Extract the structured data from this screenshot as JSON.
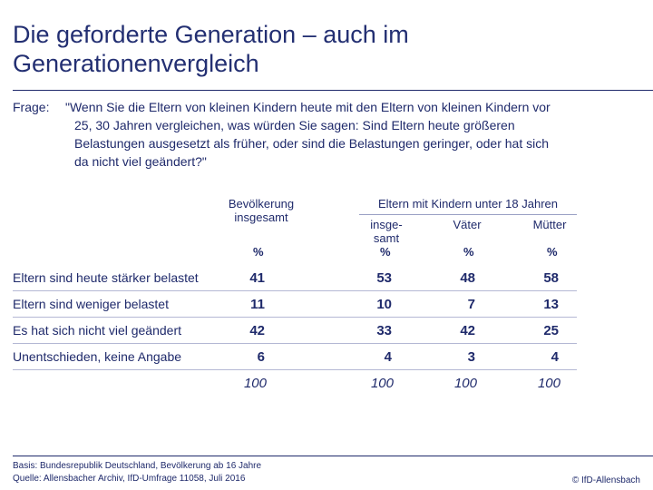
{
  "title": {
    "line1": "Die geforderte Generation – auch im",
    "line2": "Generationenvergleich"
  },
  "question": {
    "label": "Frage:",
    "lines": [
      "\"Wenn Sie die Eltern von kleinen Kindern heute mit den Eltern von kleinen Kindern vor",
      "25, 30 Jahren vergleichen, was würden Sie sagen: Sind Eltern heute größeren",
      "Belastungen ausgesetzt als früher, oder sind die Belastungen geringer, oder hat sich",
      "da nicht viel geändert?\""
    ]
  },
  "table": {
    "headers": {
      "bevoelkerung_line1": "Bevölkerung",
      "bevoelkerung_line2": "insgesamt",
      "group": "Eltern mit Kindern unter 18 Jahren",
      "insgesamt_line1": "insge-",
      "insgesamt_line2": "samt",
      "vaeter": "Väter",
      "muetter": "Mütter",
      "unit": "%"
    },
    "rows": [
      {
        "label": "Eltern sind heute stärker belastet",
        "values": [
          "41",
          "53",
          "48",
          "58"
        ]
      },
      {
        "label": "Eltern sind weniger belastet",
        "values": [
          "11",
          "10",
          "7",
          "13"
        ]
      },
      {
        "label": "Es hat sich nicht viel geändert",
        "values": [
          "42",
          "33",
          "42",
          "25"
        ]
      },
      {
        "label": "Unentschieden, keine Angabe",
        "values": [
          "6",
          "4",
          "3",
          "4"
        ]
      }
    ],
    "totals": [
      "100",
      "100",
      "100",
      "100"
    ]
  },
  "footer": {
    "basis": "Basis: Bundesrepublik Deutschland, Bevölkerung ab 16 Jahre",
    "quelle": "Quelle: Allensbacher Archiv, IfD-Umfrage 11058, Juli 2016",
    "copyright": "© IfD-Allensbach"
  },
  "colors": {
    "text": "#1f2a6b",
    "rule": "#b4b8d4"
  }
}
